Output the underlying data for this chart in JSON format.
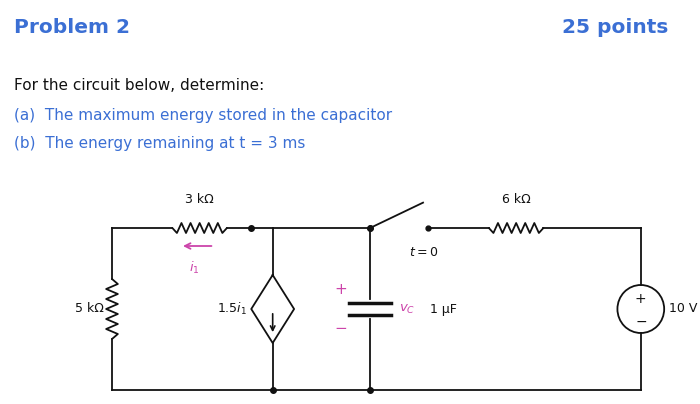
{
  "title": "Problem 2",
  "points": "25 points",
  "line1": "For the circuit below, determine:",
  "item_a": "(a)  The maximum energy stored in the capacitor",
  "item_b_part1": "(b)  The energy remaining at ",
  "item_b_math": "t",
  "item_b_part2": " = 3 ms",
  "text_color_blue": "#3b6fd4",
  "text_color_pink": "#cc44aa",
  "text_color_black": "#111111",
  "bg_color": "#ffffff",
  "resistor_3k_label": "3 kΩ",
  "resistor_5k_label": "5 kΩ",
  "resistor_6k_label": "6 kΩ",
  "capacitor_label": "1 μF",
  "switch_label": "t = 0",
  "source_label": "10 V",
  "figsize": [
    7.0,
    4.04
  ],
  "dpi": 100
}
